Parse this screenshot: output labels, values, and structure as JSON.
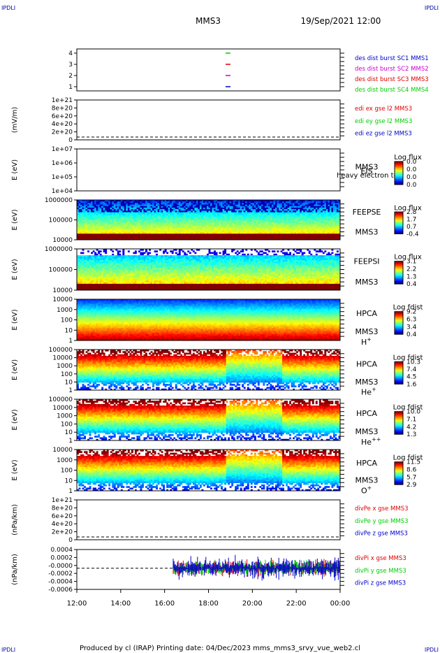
{
  "corner_labels": {
    "tl": "IPDLI",
    "tr": "IPDLI",
    "bl": "IPDLI",
    "br": "IPDLI"
  },
  "header": {
    "spacecraft": "MMS3",
    "datetime": "19/Sep/2021 12:00"
  },
  "footer": {
    "text": "Produced by cl (IRAP)   Printing date: 04/Dec/2023   mms_mms3_srvy_vue_web2.cl"
  },
  "x_axis": {
    "ticks": [
      "12:00",
      "14:00",
      "16:00",
      "18:00",
      "20:00",
      "22:00",
      "00:00"
    ]
  },
  "colors": {
    "blue": "#0000cc",
    "magenta": "#cc00cc",
    "red": "#dd0000",
    "green": "#00cc00"
  },
  "chart_data": [
    {
      "type": "scatter",
      "panel": "burst",
      "yticks": [
        "4",
        "3",
        "2",
        "1"
      ],
      "legend": [
        {
          "text": "des dist burst SC1 MMS1",
          "color": "#0000cc"
        },
        {
          "text": "des dist burst SC2 MMS2",
          "color": "#cc00cc"
        },
        {
          "text": "des dist burst SC3 MMS3",
          "color": "#dd0000"
        },
        {
          "text": "des dist burst SC4 MMS4",
          "color": "#00cc00"
        }
      ],
      "marks": [
        {
          "y": 4,
          "color": "#00cc00"
        },
        {
          "y": 3,
          "color": "#dd0000"
        },
        {
          "y": 2,
          "color": "#cc00cc"
        },
        {
          "y": 1,
          "color": "#0000cc"
        }
      ]
    },
    {
      "type": "line",
      "panel": "edi",
      "ylabel": "(mV/m)",
      "yticks": [
        "1e+21",
        "8e+20",
        "6e+20",
        "4e+20",
        "2e+20",
        "0"
      ],
      "legend": [
        {
          "text": "edi ex gse l2 MMS3",
          "color": "#dd0000"
        },
        {
          "text": "edi ey gse l2 MMS3",
          "color": "#00cc00"
        },
        {
          "text": "edi ez gse l2 MMS3",
          "color": "#0000cc"
        }
      ]
    },
    {
      "type": "heatmap",
      "panel": "eis",
      "ylabel": "E (eV)",
      "yticks": [
        "1e+07",
        "1e+06",
        "1e+05",
        "1e+04"
      ],
      "labels": [
        "EIS",
        "MMS3"
      ],
      "overlay_text": "heavy electron to",
      "colorbar": {
        "title": "Log flux",
        "ticks": [
          "0.0",
          "0.0",
          "0.0",
          "0.0"
        ]
      }
    },
    {
      "type": "heatmap",
      "panel": "feepse",
      "ylabel": "E (eV)",
      "yticks": [
        "1000000",
        "100000",
        "10000"
      ],
      "labels": [
        "FEEPSE",
        "MMS3"
      ],
      "colorbar": {
        "title": "Log flux",
        "ticks": [
          "2.8",
          "1.7",
          "0.7",
          "-0.4"
        ]
      }
    },
    {
      "type": "heatmap",
      "panel": "feepsi",
      "ylabel": "E (eV)",
      "yticks": [
        "1000000",
        "100000",
        "10000"
      ],
      "labels": [
        "FEEPSI",
        "MMS3"
      ],
      "colorbar": {
        "title": "Log flux",
        "ticks": [
          "3.1",
          "2.2",
          "1.3",
          "0.4"
        ]
      }
    },
    {
      "type": "heatmap",
      "panel": "hpca-h",
      "ylabel": "E (eV)",
      "yticks": [
        "10000",
        "1000",
        "100",
        "10",
        "1"
      ],
      "labels": [
        "HPCA",
        "MMS3"
      ],
      "species": "H",
      "species_sup": "+",
      "colorbar": {
        "title": "Log fdist",
        "ticks": [
          "9.2",
          "6.3",
          "3.4",
          "0.4"
        ]
      }
    },
    {
      "type": "heatmap",
      "panel": "hpca-he",
      "ylabel": "E (eV)",
      "yticks": [
        "100000",
        "10000",
        "1000",
        "100",
        "10",
        "1"
      ],
      "labels": [
        "HPCA",
        "MMS3"
      ],
      "species": "He",
      "species_sup": "+",
      "colorbar": {
        "title": "Log fdist",
        "ticks": [
          "10.3",
          "7.4",
          "4.5",
          "1.6"
        ]
      }
    },
    {
      "type": "heatmap",
      "panel": "hpca-hepp",
      "ylabel": "E (eV)",
      "yticks": [
        "100000",
        "10000",
        "1000",
        "100",
        "10",
        "1"
      ],
      "labels": [
        "HPCA",
        "MMS3"
      ],
      "species": "He",
      "species_sup": "++",
      "colorbar": {
        "title": "Log fdist",
        "ticks": [
          "10.0",
          "7.1",
          "4.2",
          "1.3"
        ]
      }
    },
    {
      "type": "heatmap",
      "panel": "hpca-o",
      "ylabel": "E (eV)",
      "yticks": [
        "10000",
        "1000",
        "100",
        "10",
        "1"
      ],
      "labels": [
        "HPCA",
        "MMS3"
      ],
      "species": "O",
      "species_sup": "+",
      "colorbar": {
        "title": "Log fdist",
        "ticks": [
          "11.5",
          "8.6",
          "5.7",
          "2.9"
        ]
      }
    },
    {
      "type": "line",
      "panel": "divpe",
      "ylabel": "(nPa/km)",
      "yticks": [
        "1e+21",
        "8e+20",
        "6e+20",
        "4e+20",
        "2e+20",
        "0"
      ],
      "legend": [
        {
          "text": "divPe x gse MMS3",
          "color": "#dd0000"
        },
        {
          "text": "divPe y gse MMS3",
          "color": "#00cc00"
        },
        {
          "text": "divPe z gse MMS3",
          "color": "#0000cc"
        }
      ]
    },
    {
      "type": "line",
      "panel": "divpi",
      "ylabel": "(nPa/km)",
      "yticks": [
        "0.0004",
        "0.0002",
        "-0.0000",
        "-0.0002",
        "-0.0004",
        "-0.0006"
      ],
      "legend": [
        {
          "text": "divPi x gse MMS3",
          "color": "#dd0000"
        },
        {
          "text": "divPi y gse MMS3",
          "color": "#00cc00"
        },
        {
          "text": "divPi z gse MMS3",
          "color": "#0000cc"
        }
      ]
    }
  ]
}
